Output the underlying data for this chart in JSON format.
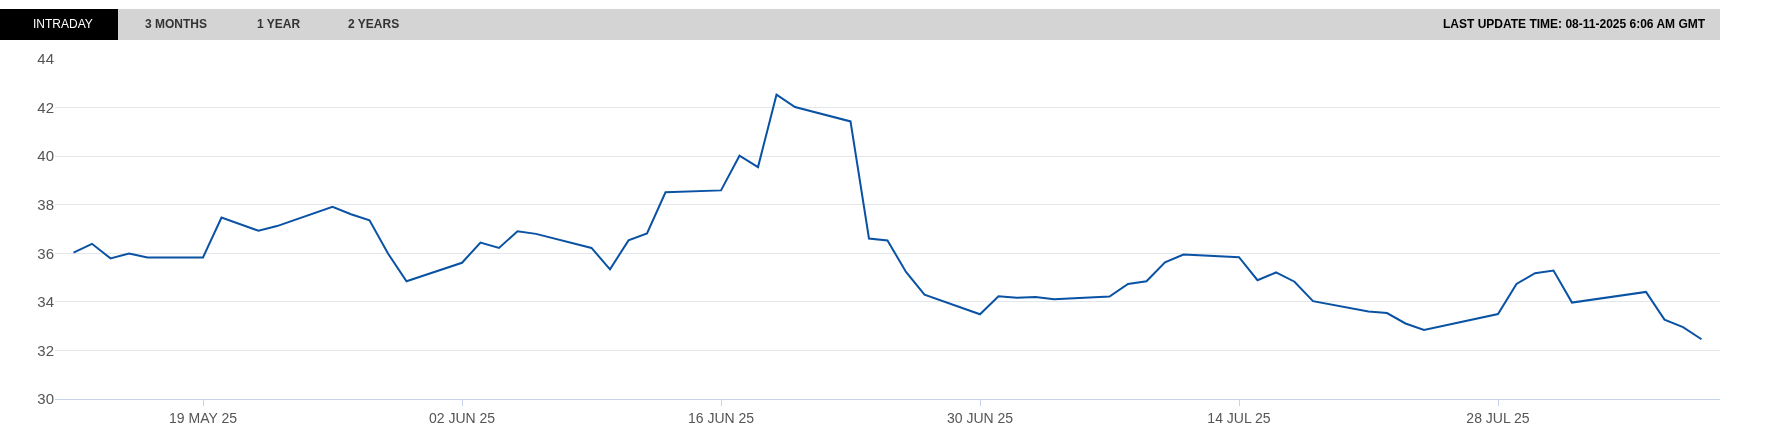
{
  "chart_data": {
    "type": "line",
    "annotations": [
      "INTRADAY",
      "3 MONTHS",
      "1 YEAR",
      "2 YEARS",
      "LAST UPDATE TIME: 08-11-2025 6:06 AM GMT"
    ],
    "x": [
      "2025-05-12",
      "2025-05-13",
      "2025-05-14",
      "2025-05-15",
      "2025-05-16",
      "2025-05-19",
      "2025-05-20",
      "2025-05-22",
      "2025-05-23",
      "2025-05-26",
      "2025-05-27",
      "2025-05-28",
      "2025-05-29",
      "2025-05-30",
      "2025-06-02",
      "2025-06-03",
      "2025-06-04",
      "2025-06-05",
      "2025-06-06",
      "2025-06-09",
      "2025-06-10",
      "2025-06-11",
      "2025-06-12",
      "2025-06-13",
      "2025-06-16",
      "2025-06-17",
      "2025-06-18",
      "2025-06-19",
      "2025-06-20",
      "2025-06-23",
      "2025-06-24",
      "2025-06-25",
      "2025-06-26",
      "2025-06-27",
      "2025-06-30",
      "2025-07-01",
      "2025-07-02",
      "2025-07-03",
      "2025-07-04",
      "2025-07-07",
      "2025-07-08",
      "2025-07-09",
      "2025-07-10",
      "2025-07-11",
      "2025-07-14",
      "2025-07-15",
      "2025-07-16",
      "2025-07-17",
      "2025-07-18",
      "2025-07-21",
      "2025-07-22",
      "2025-07-23",
      "2025-07-24",
      "2025-07-28",
      "2025-07-29",
      "2025-07-30",
      "2025-07-31",
      "2025-08-01",
      "2025-08-05",
      "2025-08-06",
      "2025-08-07",
      "2025-08-08"
    ],
    "series": [
      {
        "color": "#0a52a3",
        "values": [
          36.03,
          36.39,
          35.79,
          35.99,
          35.83,
          35.83,
          37.47,
          36.93,
          37.12,
          37.91,
          37.61,
          37.36,
          35.99,
          34.85,
          35.61,
          36.44,
          36.22,
          36.91,
          36.8,
          36.22,
          35.34,
          36.53,
          36.82,
          38.51,
          38.59,
          40.02,
          39.55,
          42.53,
          42.02,
          41.43,
          36.61,
          36.53,
          35.23,
          34.3,
          33.49,
          34.23,
          34.17,
          34.2,
          34.11,
          34.22,
          34.74,
          34.85,
          35.63,
          35.95,
          35.84,
          34.89,
          35.21,
          34.83,
          34.03,
          33.6,
          33.54,
          33.11,
          32.84,
          33.5,
          34.74,
          35.18,
          35.29,
          33.97,
          34.41,
          33.27,
          32.96,
          32.46
        ]
      }
    ],
    "xlim": [
      "2025-05-11",
      "2025-08-09"
    ],
    "xticks": [
      {
        "value": "2025-05-19",
        "label": "19 MAY 25"
      },
      {
        "value": "2025-06-02",
        "label": "02 JUN 25"
      },
      {
        "value": "2025-06-16",
        "label": "16 JUN 25"
      },
      {
        "value": "2025-06-30",
        "label": "30 JUN 25"
      },
      {
        "value": "2025-07-14",
        "label": "14 JUL 25"
      },
      {
        "value": "2025-07-28",
        "label": "28 JUL 25"
      }
    ],
    "ylim": [
      30,
      44
    ],
    "yticks": [
      30,
      32,
      34,
      36,
      38,
      40,
      42,
      44
    ],
    "grid": "y",
    "marker": "none",
    "line_style": "solid",
    "legend": false
  }
}
